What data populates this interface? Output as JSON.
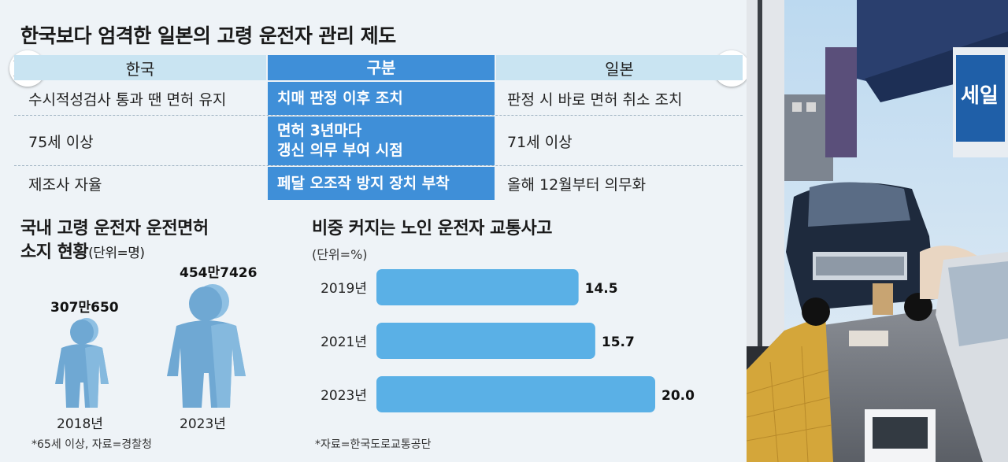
{
  "title": "한국보다 엄격한 일본의 고령 운전자 관리 제도",
  "table": {
    "header": {
      "left": "한국",
      "mid": "구분",
      "right": "일본"
    },
    "rows": [
      {
        "left": "수시적성검사 통과 땐 면허 유지",
        "mid": "치매 판정 이후 조치",
        "right": "판정 시 바로 면허 취소 조치"
      },
      {
        "left": "75세 이상",
        "mid_line1": "면허 3년마다",
        "mid_line2": "갱신 의무 부여 시점",
        "right": "71세 이상"
      },
      {
        "left": "제조사 자율",
        "mid": "페달 오조작 방지 장치 부착",
        "right": "올해 12월부터 의무화"
      }
    ],
    "colors": {
      "header_bg": "#c9e4f2",
      "mid_bg": "#3f8fd8",
      "korea_red": "#cd2e3a",
      "korea_blue": "#0047a0",
      "japan_red": "#e60012"
    }
  },
  "license_chart": {
    "title_line1": "국내 고령 운전자 운전면허",
    "title_line2": "소지 현황",
    "unit": "(단위=명)",
    "items": [
      {
        "year": "2018년",
        "label": "307만650",
        "value": 3070650
      },
      {
        "year": "2023년",
        "label": "454만7426",
        "value": 4547426
      }
    ],
    "note": "*65세 이상, 자료=경찰청",
    "icon": "person-icon",
    "color": "#6fa8d3"
  },
  "chart_data": {
    "type": "bar",
    "orientation": "horizontal",
    "title": "비중 커지는 노인 운전자 교통사고",
    "unit": "(단위=%)",
    "categories": [
      "2019년",
      "2021년",
      "2023년"
    ],
    "values": [
      14.5,
      15.7,
      20.0
    ],
    "value_labels": [
      "14.5",
      "15.7",
      "20.0"
    ],
    "xlim": [
      0,
      20.0
    ],
    "grid": false,
    "bar_color": "#5ab0e6",
    "source": "*자료=한국도로교통공단"
  },
  "photo": {
    "shop_sign": "세일",
    "icon": "street-scene-photo"
  }
}
